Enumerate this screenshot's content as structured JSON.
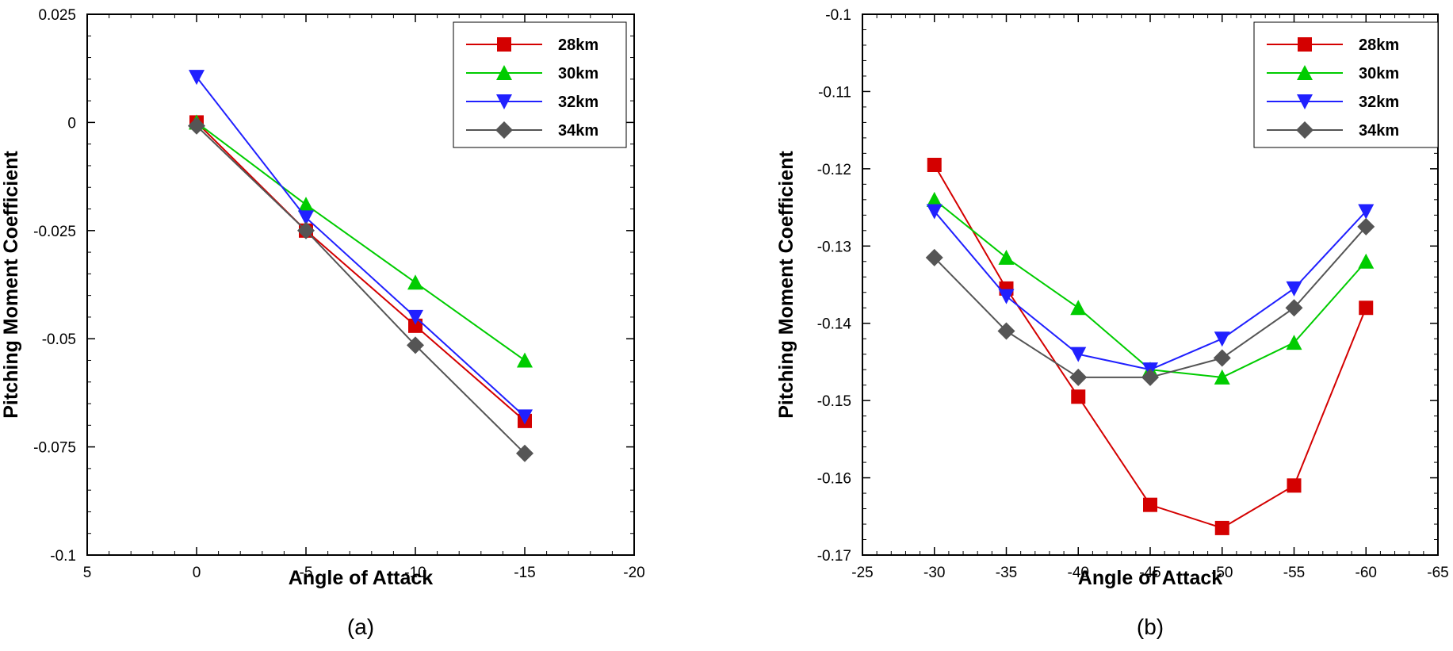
{
  "chart_data": [
    {
      "type": "line",
      "caption": "(a)",
      "xlabel": "Angle of Attack",
      "ylabel": "Pitching Moment Coefficient",
      "xlim": [
        5,
        -20
      ],
      "ylim": [
        -0.1,
        0.025
      ],
      "xticks": [
        5,
        0,
        -5,
        -10,
        -15,
        -20
      ],
      "xtick_labels": [
        "5",
        "0",
        "-5",
        "-10",
        "-15",
        "-20"
      ],
      "yticks": [
        -0.1,
        -0.075,
        -0.05,
        -0.025,
        0,
        0.025
      ],
      "ytick_labels": [
        "-0.1",
        "-0.075",
        "-0.05",
        "-0.025",
        "0",
        "0.025"
      ],
      "grid": false,
      "legend_position": "top-right",
      "x": [
        0,
        -5,
        -10,
        -15
      ],
      "series": [
        {
          "name": "28km",
          "values": [
            0.0,
            -0.025,
            -0.047,
            -0.069
          ],
          "color": "#d40000",
          "marker": "square"
        },
        {
          "name": "30km",
          "values": [
            0.0,
            -0.019,
            -0.037,
            -0.055
          ],
          "color": "#00cc00",
          "marker": "triangle-up"
        },
        {
          "name": "32km",
          "values": [
            0.0105,
            -0.022,
            -0.045,
            -0.068
          ],
          "color": "#2020ff",
          "marker": "triangle-down"
        },
        {
          "name": "34km",
          "values": [
            -0.0008,
            -0.025,
            -0.0515,
            -0.0765
          ],
          "color": "#555555",
          "marker": "diamond"
        }
      ]
    },
    {
      "type": "line",
      "caption": "(b)",
      "xlabel": "Angle of Attack",
      "ylabel": "Pitching Moment Coefficient",
      "xlim": [
        -25,
        -65
      ],
      "ylim": [
        -0.17,
        -0.1
      ],
      "xticks": [
        -25,
        -30,
        -35,
        -40,
        -45,
        -50,
        -55,
        -60,
        -65
      ],
      "xtick_labels": [
        "-25",
        "-30",
        "-35",
        "-40",
        "-45",
        "-50",
        "-55",
        "-60",
        "-65"
      ],
      "yticks": [
        -0.17,
        -0.16,
        -0.15,
        -0.14,
        -0.13,
        -0.12,
        -0.11,
        -0.1
      ],
      "ytick_labels": [
        "-0.17",
        "-0.16",
        "-0.15",
        "-0.14",
        "-0.13",
        "-0.12",
        "-0.11",
        "-0.1"
      ],
      "grid": false,
      "legend_position": "top-right",
      "x": [
        -30,
        -35,
        -40,
        -45,
        -50,
        -55,
        -60
      ],
      "series": [
        {
          "name": "28km",
          "values": [
            -0.1195,
            -0.1355,
            -0.1495,
            -0.1635,
            -0.1665,
            -0.161,
            -0.138
          ],
          "color": "#d40000",
          "marker": "square"
        },
        {
          "name": "30km",
          "values": [
            -0.124,
            -0.1315,
            -0.138,
            -0.146,
            -0.147,
            -0.1425,
            -0.132
          ],
          "color": "#00cc00",
          "marker": "triangle-up"
        },
        {
          "name": "32km",
          "values": [
            -0.1255,
            -0.1365,
            -0.144,
            -0.146,
            -0.142,
            -0.1355,
            -0.1255
          ],
          "color": "#2020ff",
          "marker": "triangle-down"
        },
        {
          "name": "34km",
          "values": [
            -0.1315,
            -0.141,
            -0.147,
            -0.147,
            -0.1445,
            -0.138,
            -0.1275
          ],
          "color": "#555555",
          "marker": "diamond"
        }
      ]
    }
  ]
}
